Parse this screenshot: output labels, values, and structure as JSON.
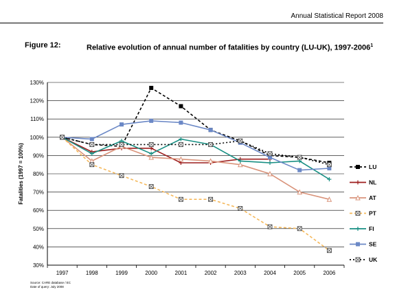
{
  "header": {
    "report_title": "Annual Statistical Report 2008"
  },
  "figure": {
    "label": "Figure 12:",
    "title": "Relative evolution of annual number of fatalities by country (LU-UK), 1997-2006",
    "footnote_mark": "1"
  },
  "source": {
    "line1": "Source: CARE database / EC",
    "line2": "Date of query: July 2008"
  },
  "chart_data": {
    "type": "line",
    "ylabel": "Fatalities (1997 = 100%)",
    "ylim": [
      30,
      130
    ],
    "yticks": [
      30,
      40,
      50,
      60,
      70,
      80,
      90,
      100,
      110,
      120,
      130
    ],
    "y_tick_suffix": "%",
    "grid": true,
    "legend_position": "right",
    "x": [
      "1997",
      "1998",
      "1999",
      "2000",
      "2001",
      "2002",
      "2003",
      "2004",
      "2005",
      "2006"
    ],
    "series": [
      {
        "name": "LU",
        "color": "#000000",
        "dash": "4,3",
        "marker": "square",
        "values": [
          100,
          96,
          95,
          127,
          117,
          104,
          98,
          90,
          89,
          86
        ]
      },
      {
        "name": "NL",
        "color": "#9c1c1c",
        "dash": "",
        "marker": "plus",
        "values": [
          100,
          92,
          94,
          94,
          86,
          86,
          88,
          88,
          null,
          null
        ]
      },
      {
        "name": "AT",
        "color": "#d9937a",
        "dash": "",
        "marker": "tri",
        "values": [
          100,
          87,
          95,
          89,
          88,
          87,
          85,
          80,
          70,
          66
        ]
      },
      {
        "name": "PT",
        "color": "#f5b85a",
        "dash": "4,3",
        "marker": "xsq",
        "values": [
          100,
          85,
          79,
          73,
          66,
          66,
          61,
          51,
          50,
          38
        ]
      },
      {
        "name": "FI",
        "color": "#168e82",
        "dash": "",
        "marker": "plus",
        "values": [
          100,
          91,
          98,
          91,
          99,
          96,
          87,
          86,
          87,
          77
        ]
      },
      {
        "name": "SE",
        "color": "#6b88c6",
        "dash": "",
        "marker": "square",
        "values": [
          100,
          99,
          107,
          109,
          108,
          104,
          97,
          89,
          82,
          83
        ]
      },
      {
        "name": "UK",
        "color": "#000000",
        "dash": "2,3",
        "marker": "xsq",
        "values": [
          100,
          96,
          96,
          96,
          96,
          96,
          98,
          91,
          89,
          85
        ]
      }
    ]
  }
}
